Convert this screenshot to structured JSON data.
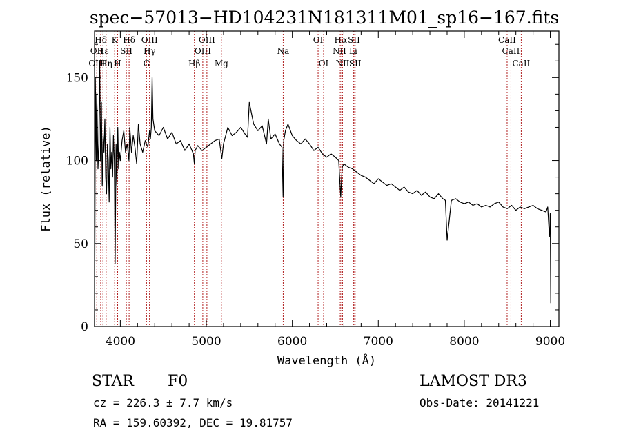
{
  "chart_data": {
    "type": "line",
    "title": "spec−57013−HD104231N181311M01_sp16−167.fits",
    "xlabel": "Wavelength (Å)",
    "ylabel": "Flux (relative)",
    "xlim": [
      3700,
      9100
    ],
    "ylim": [
      0,
      178
    ],
    "grid": false,
    "xticks": [
      4000,
      5000,
      6000,
      7000,
      8000,
      9000
    ],
    "yticks": [
      0,
      50,
      100,
      150
    ],
    "series": [
      {
        "name": "spectrum",
        "x": [
          3700,
          3705,
          3710,
          3715,
          3720,
          3725,
          3730,
          3740,
          3750,
          3760,
          3770,
          3780,
          3790,
          3800,
          3810,
          3820,
          3830,
          3840,
          3850,
          3860,
          3870,
          3880,
          3890,
          3900,
          3910,
          3920,
          3930,
          3940,
          3950,
          3960,
          3970,
          3980,
          3990,
          4000,
          4020,
          4040,
          4060,
          4080,
          4100,
          4110,
          4130,
          4150,
          4170,
          4190,
          4210,
          4230,
          4260,
          4290,
          4320,
          4340,
          4350,
          4360,
          4370,
          4380,
          4400,
          4450,
          4500,
          4550,
          4600,
          4650,
          4700,
          4750,
          4800,
          4850,
          4861,
          4870,
          4900,
          4950,
          5000,
          5050,
          5100,
          5150,
          5180,
          5200,
          5250,
          5300,
          5350,
          5400,
          5450,
          5480,
          5500,
          5550,
          5600,
          5650,
          5700,
          5720,
          5750,
          5800,
          5850,
          5880,
          5893,
          5900,
          5920,
          5950,
          6000,
          6050,
          6100,
          6150,
          6200,
          6250,
          6300,
          6350,
          6400,
          6450,
          6500,
          6540,
          6563,
          6580,
          6600,
          6650,
          6700,
          6750,
          6800,
          6850,
          6900,
          6950,
          7000,
          7050,
          7100,
          7150,
          7200,
          7250,
          7300,
          7350,
          7400,
          7450,
          7500,
          7550,
          7600,
          7650,
          7700,
          7750,
          7780,
          7800,
          7850,
          7900,
          7950,
          8000,
          8050,
          8100,
          8150,
          8200,
          8250,
          8300,
          8350,
          8400,
          8450,
          8500,
          8550,
          8600,
          8650,
          8700,
          8750,
          8800,
          8850,
          8900,
          8950,
          8970,
          8990,
          9000,
          9005
        ],
        "values": [
          0,
          60,
          150,
          120,
          100,
          140,
          130,
          95,
          110,
          160,
          100,
          135,
          85,
          115,
          105,
          125,
          90,
          80,
          110,
          100,
          75,
          120,
          95,
          105,
          90,
          115,
          100,
          38,
          110,
          85,
          120,
          95,
          105,
          100,
          112,
          118,
          105,
          110,
          100,
          120,
          105,
          115,
          108,
          98,
          122,
          110,
          105,
          112,
          108,
          118,
          113,
          120,
          150,
          125,
          118,
          115,
          120,
          113,
          117,
          110,
          112,
          106,
          110,
          104,
          98,
          106,
          109,
          106,
          108,
          110,
          112,
          113,
          101,
          110,
          120,
          115,
          117,
          120,
          116,
          114,
          135,
          122,
          118,
          121,
          110,
          125,
          113,
          116,
          110,
          108,
          78,
          112,
          118,
          122,
          115,
          112,
          110,
          113,
          110,
          106,
          108,
          104,
          102,
          104,
          102,
          100,
          78,
          96,
          98,
          96,
          95,
          93,
          91,
          90,
          88,
          86,
          89,
          87,
          85,
          86,
          84,
          82,
          84,
          81,
          80,
          82,
          79,
          81,
          78,
          77,
          80,
          77,
          76,
          52,
          76,
          77,
          75,
          74,
          75,
          73,
          74,
          72,
          73,
          72,
          74,
          75,
          72,
          71,
          73,
          70,
          72,
          71,
          72,
          73,
          71,
          70,
          69,
          72,
          54,
          68,
          14
        ]
      }
    ],
    "line_markers": [
      {
        "label": "OII",
        "wavelength": 3727,
        "row": 2
      },
      {
        "label": "OIII",
        "wavelength": 3727,
        "row": 3
      },
      {
        "label": "Hδ",
        "wavelength": 3772,
        "row": 1
      },
      {
        "label": "Hε",
        "wavelength": 3798,
        "row": 2
      },
      {
        "label": "Hη",
        "wavelength": 3835,
        "row": 3
      },
      {
        "label": "K",
        "wavelength": 3934,
        "row": 1
      },
      {
        "label": "H",
        "wavelength": 3969,
        "row": 3
      },
      {
        "label": "SII",
        "wavelength": 4070,
        "row": 2
      },
      {
        "label": "Hδ",
        "wavelength": 4102,
        "row": 1
      },
      {
        "label": "G",
        "wavelength": 4305,
        "row": 3
      },
      {
        "label": "OIII",
        "wavelength": 4340,
        "row": 1
      },
      {
        "label": "Hγ",
        "wavelength": 4340,
        "row": 2
      },
      {
        "label": "Hβ",
        "wavelength": 4861,
        "row": 3
      },
      {
        "label": "OIII",
        "wavelength": 4959,
        "row": 2
      },
      {
        "label": "OIII",
        "wavelength": 5007,
        "row": 1
      },
      {
        "label": "Mg",
        "wavelength": 5175,
        "row": 3
      },
      {
        "label": "Na",
        "wavelength": 5894,
        "row": 2
      },
      {
        "label": "OI",
        "wavelength": 6300,
        "row": 1
      },
      {
        "label": "OI",
        "wavelength": 6364,
        "row": 3
      },
      {
        "label": "Hα",
        "wavelength": 6563,
        "row": 1
      },
      {
        "label": "NII",
        "wavelength": 6548,
        "row": 2
      },
      {
        "label": "NII",
        "wavelength": 6584,
        "row": 3
      },
      {
        "label": "SII",
        "wavelength": 6717,
        "row": 1
      },
      {
        "label": "Li",
        "wavelength": 6708,
        "row": 2
      },
      {
        "label": "SII",
        "wavelength": 6731,
        "row": 3
      },
      {
        "label": "CaII",
        "wavelength": 8498,
        "row": 1
      },
      {
        "label": "CaII",
        "wavelength": 8542,
        "row": 2
      },
      {
        "label": "CaII",
        "wavelength": 8662,
        "row": 3
      }
    ]
  },
  "info": {
    "object_class": "STAR",
    "subclass": "F0",
    "survey": "LAMOST DR3",
    "cz": "cz = 226.3 ± 7.7 km/s",
    "obs_date": "Obs-Date: 20141221",
    "coords": "RA = 159.60392, DEC =  19.81757"
  },
  "colors": {
    "marker_line": "#b22222",
    "spectrum": "#000000",
    "axes": "#000000"
  }
}
